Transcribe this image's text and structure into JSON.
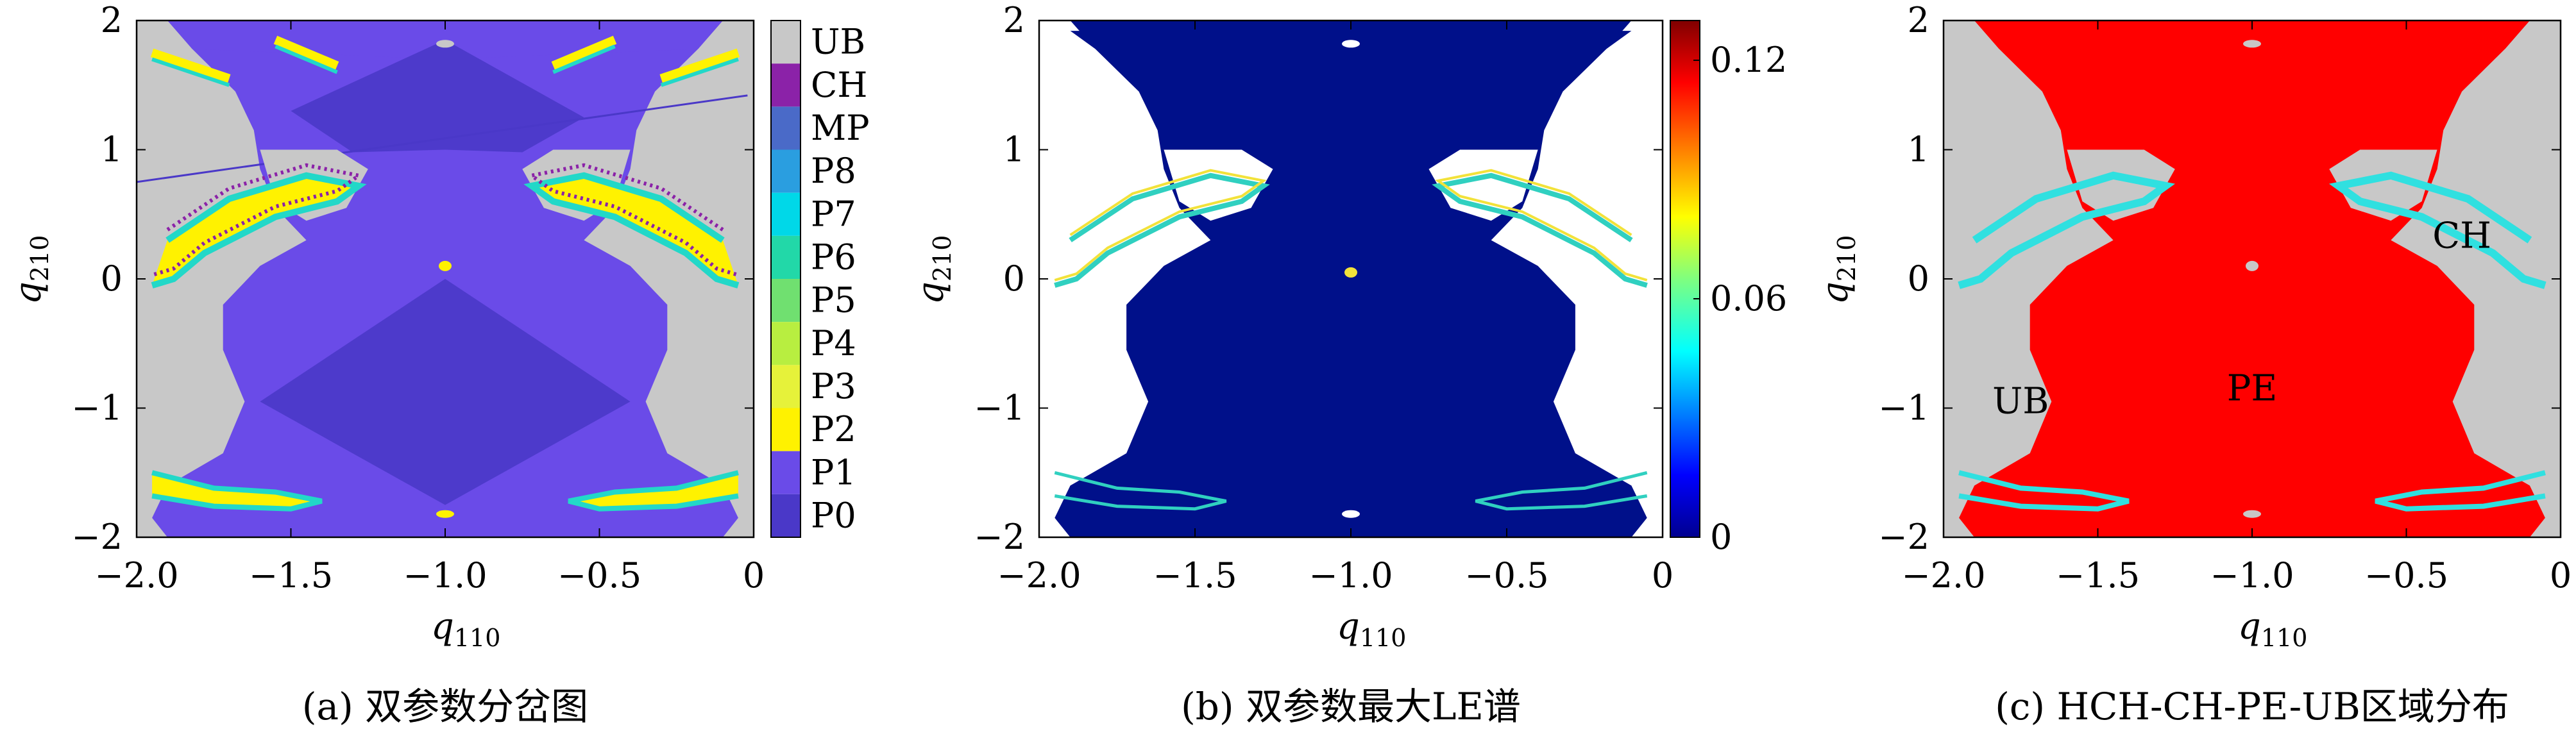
{
  "chart_data": [
    {
      "type": "heatmap",
      "caption": "(a) 双参数分岔图",
      "xlabel": "q",
      "xlabel_sub": "110",
      "ylabel": "q",
      "ylabel_sub": "210",
      "xlim": [
        -2.0,
        0
      ],
      "ylim": [
        -2,
        2
      ],
      "xticks": [
        {
          "v": -2.0,
          "t": "−2.0"
        },
        {
          "v": -1.5,
          "t": "−1.5"
        },
        {
          "v": -1.0,
          "t": "−1.0"
        },
        {
          "v": -0.5,
          "t": "−0.5"
        },
        {
          "v": 0,
          "t": "0"
        }
      ],
      "yticks": [
        {
          "v": 2,
          "t": "2"
        },
        {
          "v": 1,
          "t": "1"
        },
        {
          "v": 0,
          "t": "0"
        },
        {
          "v": -1,
          "t": "−1"
        },
        {
          "v": -2,
          "t": "−2"
        }
      ],
      "legend": {
        "placement": "right",
        "entries": [
          {
            "label": "UB",
            "color": "#c8c8c8"
          },
          {
            "label": "CH",
            "color": "#8b22a8"
          },
          {
            "label": "MP",
            "color": "#4a6ac8"
          },
          {
            "label": "P8",
            "color": "#2a9ee0"
          },
          {
            "label": "P7",
            "color": "#00d8e8"
          },
          {
            "label": "P6",
            "color": "#22d8a8"
          },
          {
            "label": "P5",
            "color": "#70e070"
          },
          {
            "label": "P4",
            "color": "#b8ee40"
          },
          {
            "label": "P3",
            "color": "#e6f23a"
          },
          {
            "label": "P2",
            "color": "#fff200"
          },
          {
            "label": "P1",
            "color": "#6a4be8"
          },
          {
            "label": "P0",
            "color": "#4a38c8"
          }
        ]
      },
      "colors": {
        "background": "#c8c8c8",
        "main": "#6a4be8",
        "dark": "#4a38c8",
        "yellow": "#fff200",
        "cyan": "#22d8c8"
      }
    },
    {
      "type": "heatmap",
      "caption": "(b) 双参数最大LE谱",
      "xlabel": "q",
      "xlabel_sub": "110",
      "ylabel": "q",
      "ylabel_sub": "210",
      "xlim": [
        -2.0,
        0
      ],
      "ylim": [
        -2,
        2
      ],
      "xticks": [
        {
          "v": -2.0,
          "t": "−2.0"
        },
        {
          "v": -1.5,
          "t": "−1.5"
        },
        {
          "v": -1.0,
          "t": "−1.0"
        },
        {
          "v": -0.5,
          "t": "−0.5"
        },
        {
          "v": 0,
          "t": "0"
        }
      ],
      "yticks": [
        {
          "v": 2,
          "t": "2"
        },
        {
          "v": 1,
          "t": "1"
        },
        {
          "v": 0,
          "t": "0"
        },
        {
          "v": -1,
          "t": "−1"
        },
        {
          "v": -2,
          "t": "−2"
        }
      ],
      "colorbar": {
        "range": [
          0,
          0.13
        ],
        "ticks": [
          {
            "v": 0.12,
            "t": "0.12"
          },
          {
            "v": 0.06,
            "t": "0.06"
          },
          {
            "v": 0,
            "t": "0"
          }
        ],
        "colormap": "jet"
      },
      "colors": {
        "background": "#ffffff",
        "main": "#00108a",
        "yellow": "#f2e23a",
        "cyan": "#30d0c0"
      }
    },
    {
      "type": "heatmap",
      "caption": "(c) HCH-CH-PE-UB区域分布",
      "xlabel": "q",
      "xlabel_sub": "110",
      "ylabel": "q",
      "ylabel_sub": "210",
      "xlim": [
        -2.0,
        0
      ],
      "ylim": [
        -2,
        2
      ],
      "xticks": [
        {
          "v": -2.0,
          "t": "−2.0"
        },
        {
          "v": -1.5,
          "t": "−1.5"
        },
        {
          "v": -1.0,
          "t": "−1.0"
        },
        {
          "v": -0.5,
          "t": "−0.5"
        },
        {
          "v": 0,
          "t": "0"
        }
      ],
      "yticks": [
        {
          "v": 2,
          "t": "2"
        },
        {
          "v": 1,
          "t": "1"
        },
        {
          "v": 0,
          "t": "0"
        },
        {
          "v": -1,
          "t": "−1"
        },
        {
          "v": -2,
          "t": "−2"
        }
      ],
      "annotations": [
        {
          "text": "UB",
          "x": -1.75,
          "y": -0.95
        },
        {
          "text": "PE",
          "x": -1.0,
          "y": -0.85
        },
        {
          "text": "CH",
          "x": -0.32,
          "y": 0.33
        }
      ],
      "colors": {
        "background": "#c8c8c8",
        "main": "#ff0000",
        "cyan": "#30e0e0"
      }
    }
  ]
}
